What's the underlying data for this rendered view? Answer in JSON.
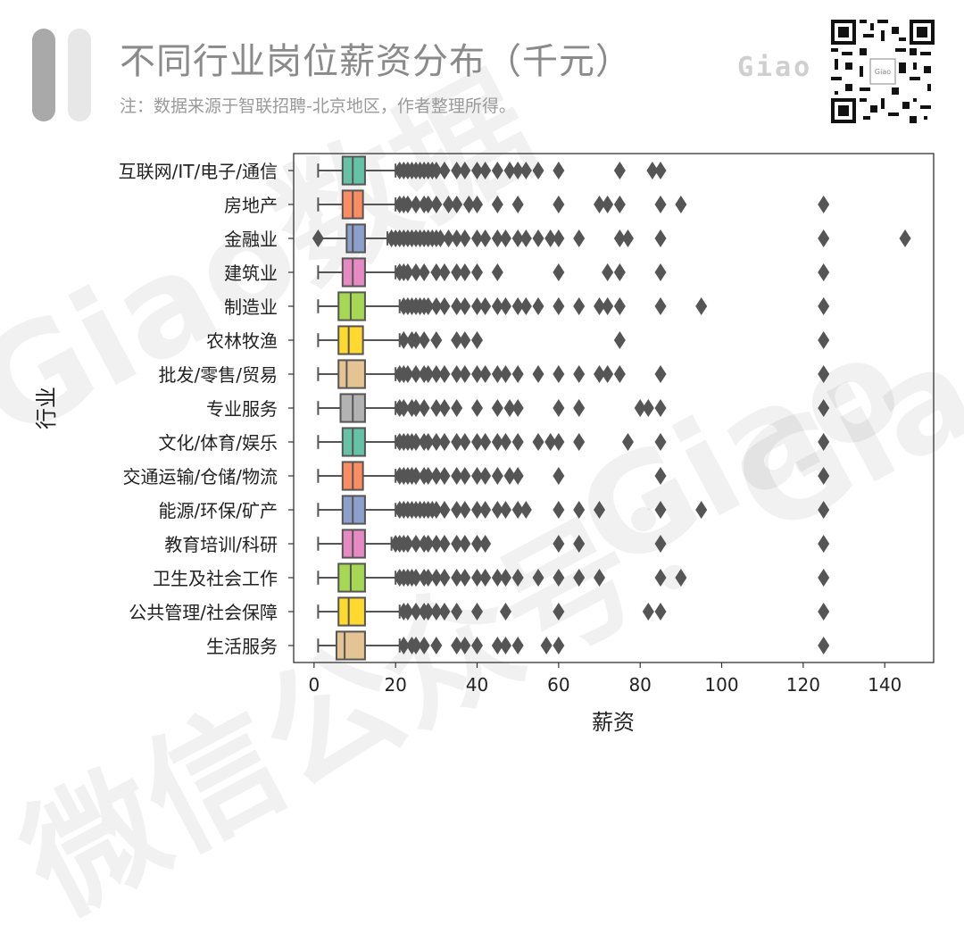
{
  "header": {
    "title": "不同行业岗位薪资分布（千元）",
    "subtitle": "注：数据来源于智联招聘-北京地区，作者整理所得。",
    "logo_text": "Giao"
  },
  "watermark": {
    "text_1": "Giao数据",
    "text_2": "微信公众号：Giao",
    "text_3": "Giao"
  },
  "colors": {
    "box_edge": "#555555",
    "outlier": "#555555",
    "title_bar_dark": "#a9a9a9",
    "title_bar_light": "#e7e7e7"
  },
  "chart_data": {
    "type": "boxplot",
    "orientation": "horizontal",
    "xlabel": "薪资",
    "ylabel": "行业",
    "xlim": [
      -5,
      152
    ],
    "xticks": [
      0,
      20,
      40,
      60,
      80,
      100,
      120,
      140
    ],
    "grid": false,
    "series": [
      {
        "category": "互联网/IT/电子/通信",
        "color": "#66c2a5",
        "whisker_low": 1,
        "q1": 7,
        "median": 9.5,
        "q3": 12.5,
        "whisker_high": 20,
        "outliers": [
          21,
          22,
          23,
          24,
          25,
          26,
          27,
          28,
          29,
          30,
          32,
          35,
          37,
          40,
          42,
          45,
          48,
          50,
          52,
          55,
          60,
          75,
          83,
          85
        ]
      },
      {
        "category": "房地产",
        "color": "#fc8d62",
        "whisker_low": 1,
        "q1": 7,
        "median": 9.5,
        "q3": 12,
        "whisker_high": 20,
        "outliers": [
          21,
          22,
          23,
          25,
          27,
          28,
          30,
          33,
          35,
          38,
          40,
          45,
          50,
          60,
          70,
          72,
          75,
          85,
          90,
          125
        ]
      },
      {
        "category": "金融业",
        "color": "#8da0cb",
        "whisker_low": 1,
        "q1": 8,
        "median": 9.5,
        "q3": 12.5,
        "whisker_high": 18,
        "outliers": [
          1,
          19,
          20,
          21,
          22,
          23,
          24,
          25,
          26,
          27,
          28,
          29,
          30,
          31,
          33,
          35,
          37,
          40,
          42,
          45,
          47,
          50,
          52,
          55,
          58,
          60,
          65,
          75,
          77,
          85,
          125,
          145
        ]
      },
      {
        "category": "建筑业",
        "color": "#e78ac3",
        "whisker_low": 1,
        "q1": 7,
        "median": 9.5,
        "q3": 12.5,
        "whisker_high": 20,
        "outliers": [
          21,
          22,
          23,
          25,
          27,
          30,
          32,
          35,
          37,
          40,
          45,
          60,
          72,
          75,
          85,
          125
        ]
      },
      {
        "category": "制造业",
        "color": "#a6d854",
        "whisker_low": 1,
        "q1": 6,
        "median": 9,
        "q3": 12.5,
        "whisker_high": 21,
        "outliers": [
          22,
          23,
          24,
          25,
          26,
          27,
          28,
          30,
          32,
          35,
          37,
          40,
          42,
          45,
          47,
          50,
          52,
          55,
          60,
          65,
          70,
          72,
          75,
          85,
          95,
          125
        ]
      },
      {
        "category": "农林牧渔",
        "color": "#ffd92f",
        "whisker_low": 1,
        "q1": 6,
        "median": 8.5,
        "q3": 12,
        "whisker_high": 21,
        "outliers": [
          22,
          24,
          25,
          27,
          30,
          35,
          37,
          40,
          75,
          125
        ]
      },
      {
        "category": "批发/零售/贸易",
        "color": "#e5c494",
        "whisker_low": 1,
        "q1": 6,
        "median": 8,
        "q3": 12.5,
        "whisker_high": 20,
        "outliers": [
          21,
          22,
          23,
          25,
          27,
          28,
          30,
          32,
          35,
          37,
          40,
          42,
          45,
          47,
          50,
          55,
          60,
          65,
          70,
          72,
          75,
          85,
          125
        ]
      },
      {
        "category": "专业服务",
        "color": "#b3b3b3",
        "whisker_low": 1,
        "q1": 6.5,
        "median": 9.5,
        "q3": 12.5,
        "whisker_high": 20,
        "outliers": [
          21,
          22,
          24,
          25,
          27,
          30,
          32,
          35,
          40,
          45,
          48,
          50,
          60,
          65,
          80,
          82,
          85,
          125
        ]
      },
      {
        "category": "文化/体育/娱乐",
        "color": "#66c2a5",
        "whisker_low": 1,
        "q1": 7,
        "median": 9.5,
        "q3": 12.5,
        "whisker_high": 20,
        "outliers": [
          21,
          22,
          23,
          24,
          25,
          27,
          28,
          30,
          32,
          35,
          37,
          40,
          42,
          45,
          47,
          50,
          55,
          58,
          60,
          65,
          77,
          85,
          125
        ]
      },
      {
        "category": "交通运输/仓储/物流",
        "color": "#fc8d62",
        "whisker_low": 1,
        "q1": 7,
        "median": 9.5,
        "q3": 12,
        "whisker_high": 20,
        "outliers": [
          21,
          22,
          23,
          24,
          25,
          27,
          28,
          30,
          32,
          35,
          37,
          40,
          42,
          45,
          48,
          50,
          60,
          85,
          125
        ]
      },
      {
        "category": "能源/环保/矿产",
        "color": "#8da0cb",
        "whisker_low": 1,
        "q1": 7,
        "median": 9.5,
        "q3": 12.5,
        "whisker_high": 20,
        "outliers": [
          21,
          22,
          23,
          24,
          25,
          26,
          27,
          28,
          29,
          30,
          32,
          35,
          37,
          40,
          42,
          45,
          47,
          50,
          52,
          60,
          65,
          70,
          85,
          95,
          125
        ]
      },
      {
        "category": "教育培训/科研",
        "color": "#e78ac3",
        "whisker_low": 1,
        "q1": 7,
        "median": 9.5,
        "q3": 12.5,
        "whisker_high": 19,
        "outliers": [
          20,
          21,
          22,
          23,
          25,
          27,
          28,
          30,
          32,
          35,
          37,
          40,
          42,
          60,
          65,
          85,
          125
        ]
      },
      {
        "category": "卫生及社会工作",
        "color": "#a6d854",
        "whisker_low": 1,
        "q1": 6,
        "median": 9,
        "q3": 12.5,
        "whisker_high": 20,
        "outliers": [
          21,
          22,
          23,
          24,
          25,
          27,
          28,
          30,
          32,
          35,
          37,
          40,
          42,
          45,
          47,
          50,
          55,
          60,
          65,
          70,
          85,
          90,
          125
        ]
      },
      {
        "category": "公共管理/社会保障",
        "color": "#ffd92f",
        "whisker_low": 1,
        "q1": 6,
        "median": 8.5,
        "q3": 12.5,
        "whisker_high": 21,
        "outliers": [
          22,
          23,
          25,
          27,
          28,
          30,
          32,
          35,
          40,
          47,
          60,
          82,
          85,
          125
        ]
      },
      {
        "category": "生活服务",
        "color": "#e5c494",
        "whisker_low": 1,
        "q1": 5.5,
        "median": 7.5,
        "q3": 12.5,
        "whisker_high": 21,
        "outliers": [
          22,
          24,
          25,
          27,
          30,
          35,
          37,
          40,
          45,
          47,
          50,
          57,
          60,
          125
        ]
      }
    ]
  }
}
